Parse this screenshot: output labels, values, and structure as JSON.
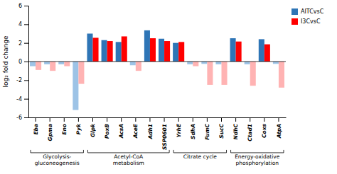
{
  "chart_data": {
    "type": "bar",
    "y_label": "log₂ fold change",
    "categories": [
      "Eba",
      "Gpma",
      "Eno",
      "Pyk",
      "Glpk",
      "PoxB",
      "AcsA",
      "AceE",
      "Adh1",
      "SSP0601",
      "YrhE",
      "SdhA",
      "FumC",
      "SucC",
      "NdhC",
      "Ctad1",
      "Coxs",
      "AtpA"
    ],
    "series": [
      {
        "name": "AITCvsC",
        "color": "#2E75B6",
        "values": [
          -0.5,
          -0.3,
          -0.3,
          -5.2,
          3.0,
          2.3,
          2.1,
          -0.4,
          3.35,
          2.45,
          2.0,
          -0.3,
          -0.25,
          -0.3,
          2.5,
          -0.3,
          2.4,
          -0.25
        ],
        "colors": [
          "#9DC3E6",
          "#9DC3E6",
          "#9DC3E6",
          "#9DC3E6",
          "#2E75B6",
          "#2E75B6",
          "#2E75B6",
          "#9DC3E6",
          "#2E75B6",
          "#2E75B6",
          "#2E75B6",
          "#9DC3E6",
          "#9DC3E6",
          "#9DC3E6",
          "#2E75B6",
          "#9DC3E6",
          "#2E75B6",
          "#9DC3E6"
        ]
      },
      {
        "name": "I3CvsC",
        "color": "#FF0000",
        "values": [
          -0.9,
          -1.0,
          -0.5,
          -2.4,
          2.55,
          2.2,
          2.7,
          -1.0,
          2.5,
          2.2,
          2.1,
          -0.5,
          -2.5,
          -2.5,
          2.15,
          -2.6,
          1.85,
          -2.8
        ],
        "colors": [
          "#FFB3B3",
          "#FFB3B3",
          "#FFB3B3",
          "#FFB3B3",
          "#FF0000",
          "#FF0000",
          "#FF0000",
          "#FFB3B3",
          "#FF0000",
          "#FF0000",
          "#FF0000",
          "#FFB3B3",
          "#FFB3B3",
          "#FFB3B3",
          "#FF0000",
          "#FFB3B3",
          "#FF0000",
          "#FFB3B3"
        ]
      }
    ],
    "annotations": [
      {
        "text": "Glycolysis-\ngluconeogenesis",
        "from": "Eba",
        "to": "Pyk"
      },
      {
        "text": "Acetyl-CoA\nmetabolism",
        "from": "Glpk",
        "to": "SSP0601"
      },
      {
        "text": "Citrate cycle",
        "from": "YrhE",
        "to": "SucC"
      },
      {
        "text": "Energy-oxidative\nphosphorylation",
        "from": "NdhC",
        "to": "AtpA"
      }
    ],
    "ylim": [
      -6,
      6
    ],
    "yticks": [
      -6,
      -4,
      -2,
      0,
      2,
      4,
      6
    ],
    "grid": false,
    "legend": "right"
  }
}
